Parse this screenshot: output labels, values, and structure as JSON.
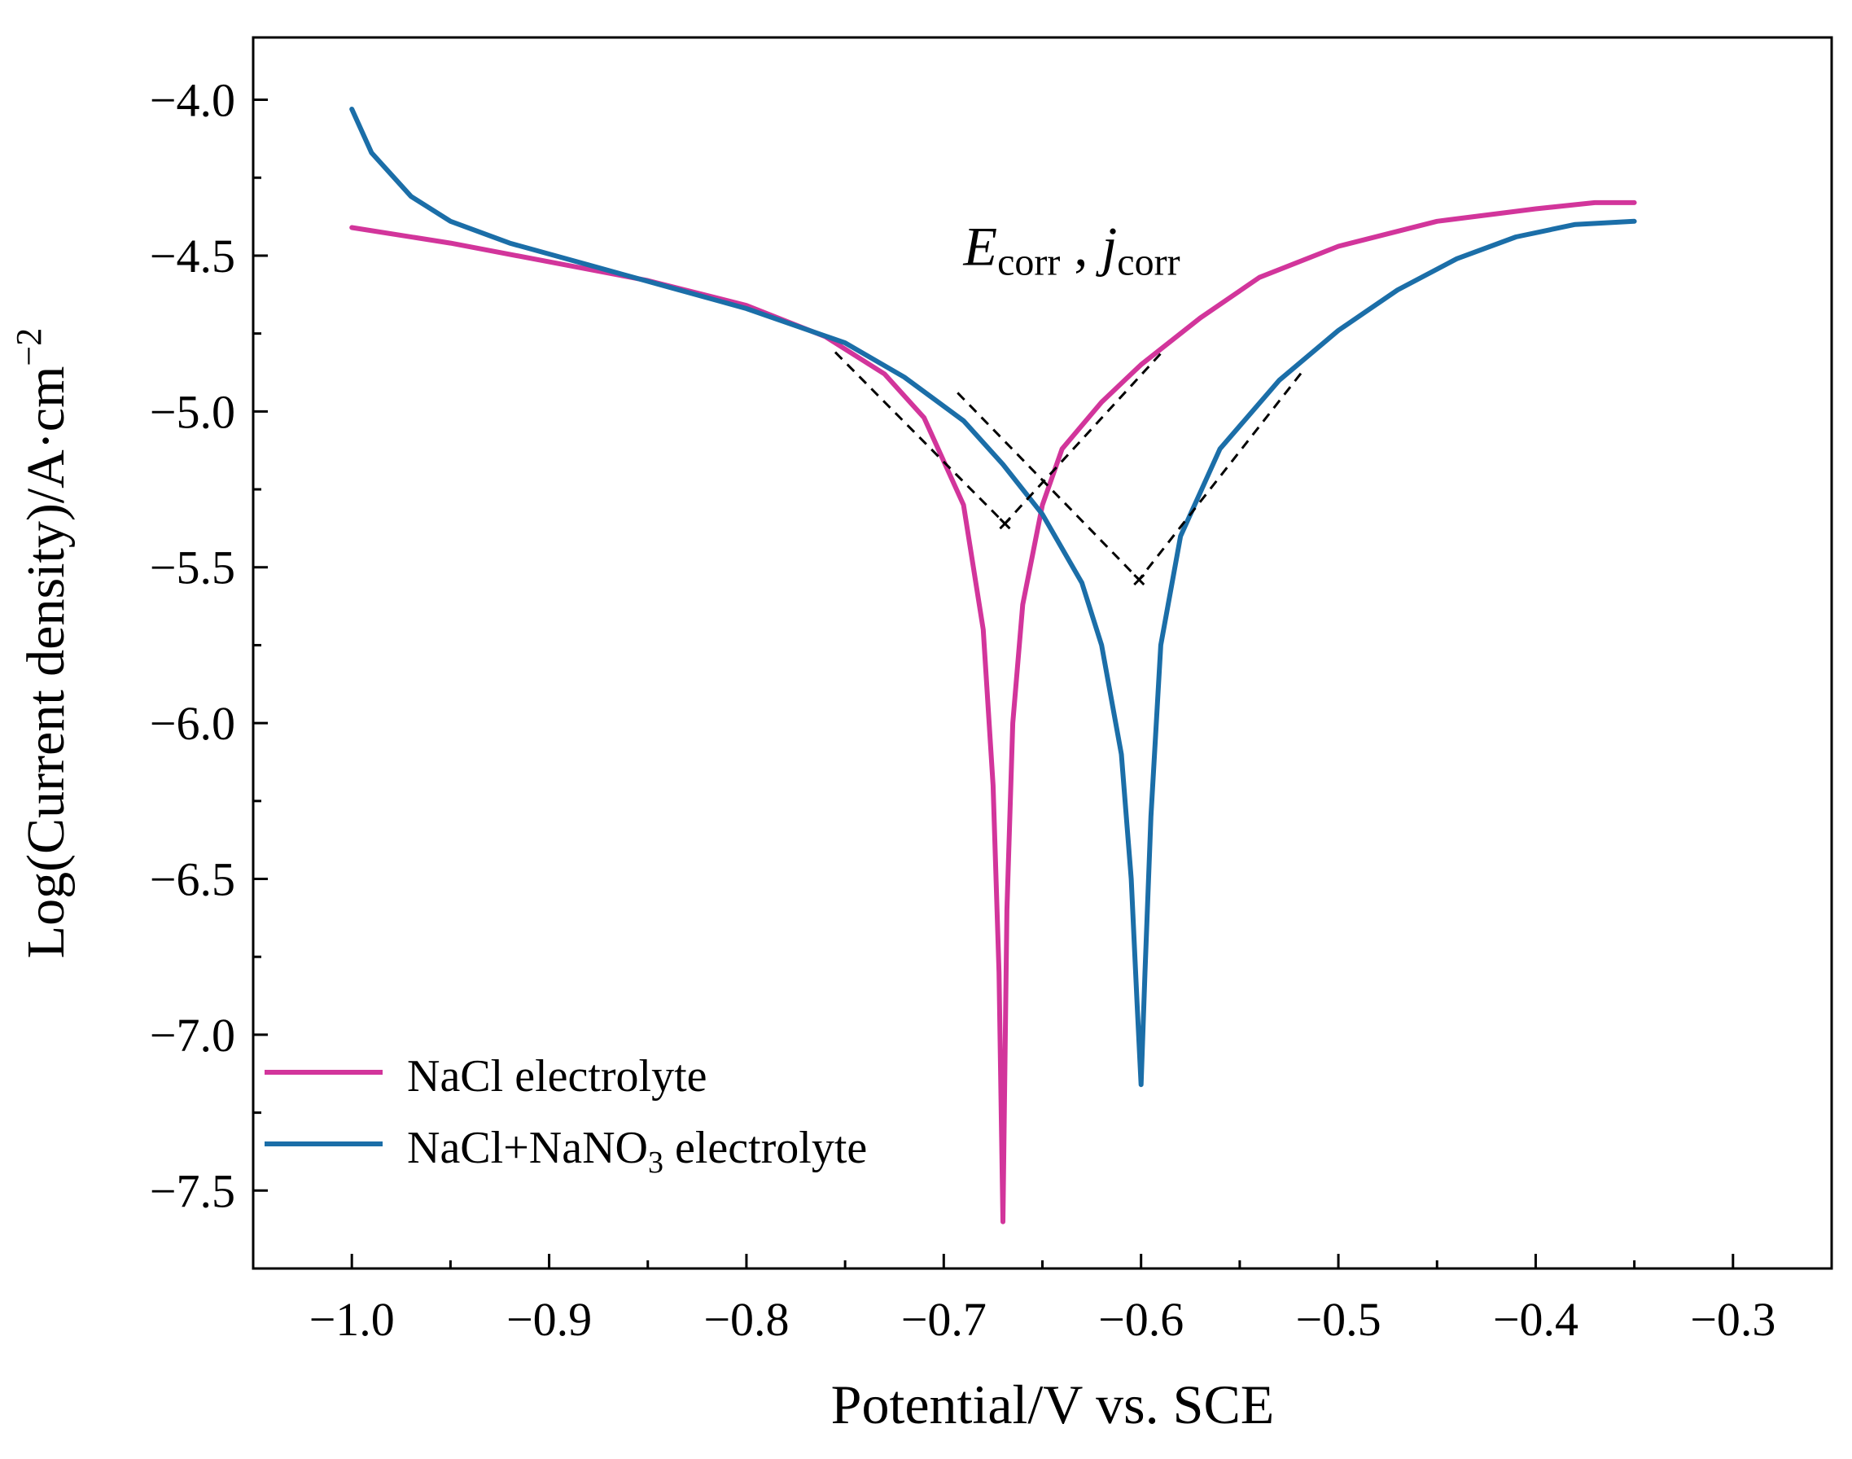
{
  "chart_data": {
    "type": "line",
    "title": "",
    "xlabel": "Potential/V vs. SCE",
    "ylabel": "Log(Current density)/A·cm",
    "ylabel_superscript": "−2",
    "xlim": [
      -1.05,
      -0.25
    ],
    "ylim": [
      -7.75,
      -3.8
    ],
    "x_ticks": [
      -1.0,
      -0.9,
      -0.8,
      -0.7,
      -0.6,
      -0.5,
      -0.4,
      -0.3
    ],
    "x_tick_labels": [
      "−1.0",
      "−0.9",
      "−0.8",
      "−0.7",
      "−0.6",
      "−0.5",
      "−0.4",
      "−0.3"
    ],
    "y_ticks": [
      -4.0,
      -4.5,
      -5.0,
      -5.5,
      -6.0,
      -6.5,
      -7.0,
      -7.5
    ],
    "y_tick_labels": [
      "−4.0",
      "−4.5",
      "−5.0",
      "−5.5",
      "−6.0",
      "−6.5",
      "−7.0",
      "−7.5"
    ],
    "grid": false,
    "legend_position": "bottom-left",
    "series": [
      {
        "name": "NaCl electrolyte",
        "legend_main": "NaCl electrolyte",
        "color": "#d2359b",
        "x": [
          -1.0,
          -0.95,
          -0.9,
          -0.85,
          -0.8,
          -0.76,
          -0.73,
          -0.71,
          -0.69,
          -0.68,
          -0.675,
          -0.672,
          -0.67,
          -0.668,
          -0.665,
          -0.66,
          -0.65,
          -0.64,
          -0.62,
          -0.6,
          -0.57,
          -0.54,
          -0.5,
          -0.45,
          -0.4,
          -0.37,
          -0.35
        ],
        "y": [
          -4.41,
          -4.46,
          -4.52,
          -4.58,
          -4.66,
          -4.76,
          -4.88,
          -5.02,
          -5.3,
          -5.7,
          -6.2,
          -6.8,
          -7.6,
          -6.6,
          -6.0,
          -5.62,
          -5.3,
          -5.12,
          -4.97,
          -4.85,
          -4.7,
          -4.57,
          -4.47,
          -4.39,
          -4.35,
          -4.33,
          -4.33
        ]
      },
      {
        "name": "NaCl+NaNO3 electrolyte",
        "legend_main": "NaCl+NaNO",
        "legend_sub": "3",
        "legend_tail": " electrolyte",
        "color": "#1b6ea8",
        "x": [
          -1.0,
          -0.99,
          -0.97,
          -0.95,
          -0.92,
          -0.88,
          -0.84,
          -0.8,
          -0.75,
          -0.72,
          -0.69,
          -0.67,
          -0.65,
          -0.63,
          -0.62,
          -0.61,
          -0.605,
          -0.602,
          -0.6,
          -0.598,
          -0.595,
          -0.59,
          -0.58,
          -0.56,
          -0.53,
          -0.5,
          -0.47,
          -0.44,
          -0.41,
          -0.38,
          -0.35
        ],
        "y": [
          -4.03,
          -4.17,
          -4.31,
          -4.39,
          -4.46,
          -4.53,
          -4.6,
          -4.67,
          -4.78,
          -4.89,
          -5.03,
          -5.17,
          -5.33,
          -5.55,
          -5.75,
          -6.1,
          -6.5,
          -6.9,
          -7.16,
          -6.8,
          -6.3,
          -5.75,
          -5.4,
          -5.12,
          -4.9,
          -4.74,
          -4.61,
          -4.51,
          -4.44,
          -4.4,
          -4.39
        ]
      }
    ],
    "tafel_lines": [
      {
        "x": [
          -0.755,
          -0.669,
          -0.588
        ],
        "y": [
          -4.81,
          -5.36,
          -4.8
        ],
        "color": "#000000"
      },
      {
        "x": [
          -0.693,
          -0.601,
          -0.518
        ],
        "y": [
          -4.94,
          -5.54,
          -4.87
        ],
        "color": "#000000"
      }
    ],
    "annotation": {
      "e_letter": "E",
      "e_sub": "corr",
      "separator": " , ",
      "j_letter": "j",
      "j_sub": "corr",
      "x": -0.69,
      "y": -4.53
    }
  }
}
